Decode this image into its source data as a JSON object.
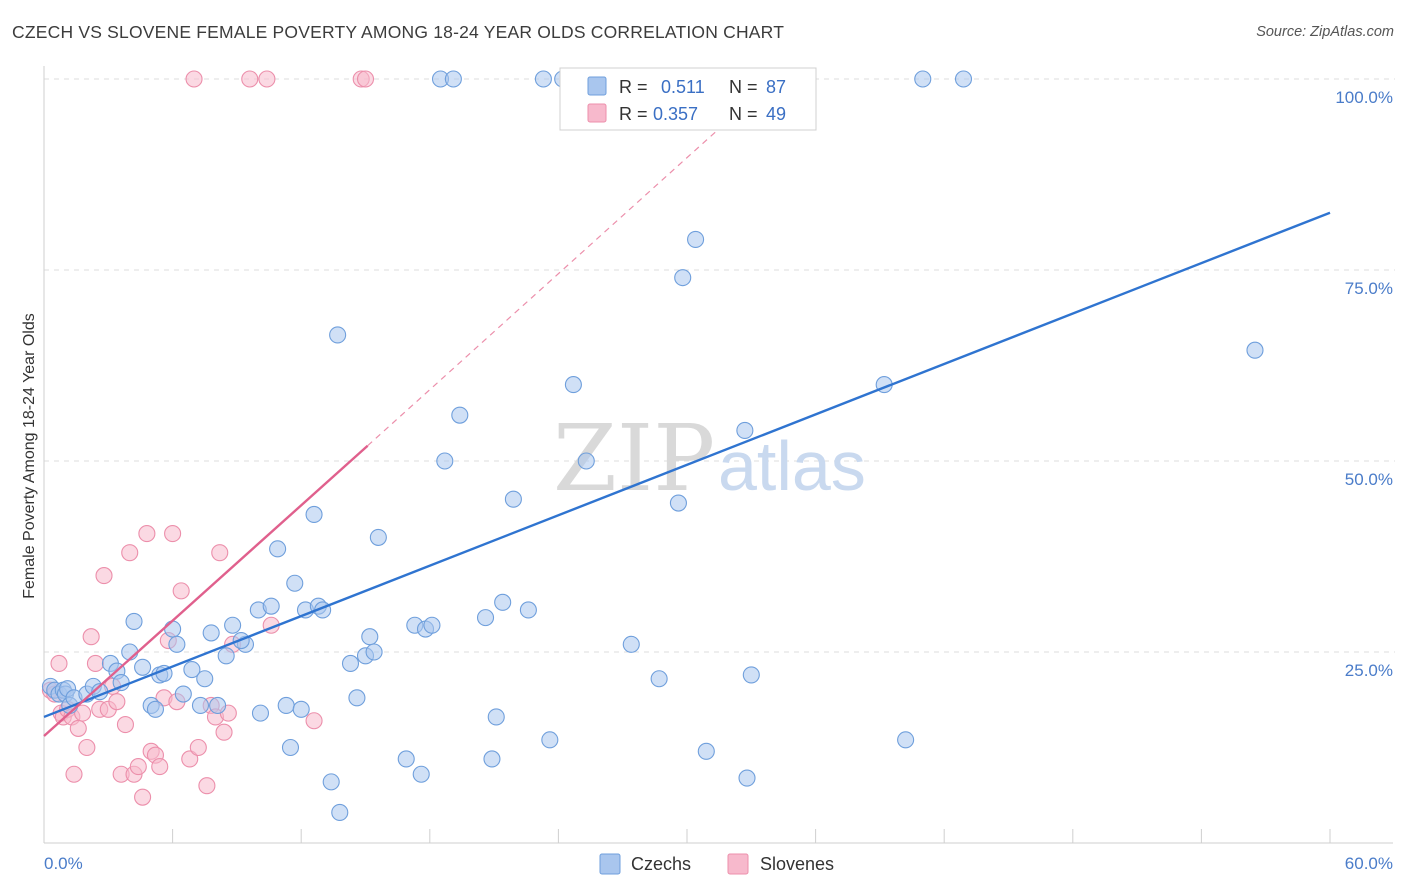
{
  "title": "CZECH VS SLOVENE FEMALE POVERTY AMONG 18-24 YEAR OLDS CORRELATION CHART",
  "source": "Source: ZipAtlas.com",
  "colors": {
    "czech_fill": "#a9c6ee",
    "czech_stroke": "#6f9fdc",
    "czech_line": "#2f74d0",
    "slovene_fill": "#f7b9cc",
    "slovene_stroke": "#ec8fab",
    "slovene_line": "#e0608d",
    "grid": "#dedede",
    "tick_text": "#4a7cc9"
  },
  "legend": {
    "rows": [
      {
        "r_label": "R =",
        "r_value": "0.511",
        "n_label": "N =",
        "n_value": "87"
      },
      {
        "r_label": "R =",
        "r_value": "0.357",
        "n_label": "N =",
        "n_value": "49"
      }
    ]
  },
  "bottom_legend": {
    "czech": "Czechs",
    "slovene": "Slovenes"
  },
  "watermark": {
    "zip": "ZIP",
    "atlas": "atlas"
  },
  "chart_data": {
    "type": "scatter",
    "title": "CZECH VS SLOVENE FEMALE POVERTY AMONG 18-24 YEAR OLDS CORRELATION CHART",
    "xlabel": "",
    "ylabel": "Female Poverty Among 18-24 Year Olds",
    "xlim": [
      0,
      60
    ],
    "ylim": [
      0,
      100
    ],
    "x_tick_labels": [
      "0.0%",
      "60.0%"
    ],
    "y_tick_values": [
      25,
      50,
      75,
      100
    ],
    "y_tick_labels": [
      "25.0%",
      "50.0%",
      "75.0%",
      "100.0%"
    ],
    "grid": true,
    "legend_position": "top-center",
    "series": [
      {
        "name": "Czechs",
        "r": 0.511,
        "n": 87,
        "trend": {
          "x0": 0,
          "y0": 16.5,
          "x1": 60,
          "y1": 82.5
        },
        "points": [
          [
            0.3,
            20.5
          ],
          [
            0.5,
            20
          ],
          [
            0.7,
            19.5
          ],
          [
            0.9,
            20
          ],
          [
            1.0,
            19.5
          ],
          [
            1.1,
            20.2
          ],
          [
            1.2,
            18
          ],
          [
            1.4,
            19
          ],
          [
            2.0,
            19.5
          ],
          [
            2.3,
            20.5
          ],
          [
            2.6,
            19.8
          ],
          [
            3.1,
            23.5
          ],
          [
            3.4,
            22.5
          ],
          [
            3.6,
            21
          ],
          [
            4.0,
            25
          ],
          [
            4.2,
            29
          ],
          [
            4.6,
            23
          ],
          [
            5.0,
            18
          ],
          [
            5.2,
            17.5
          ],
          [
            5.4,
            22
          ],
          [
            5.6,
            22.2
          ],
          [
            6.0,
            28
          ],
          [
            6.2,
            26
          ],
          [
            6.5,
            19.5
          ],
          [
            6.9,
            22.7
          ],
          [
            7.3,
            18
          ],
          [
            7.5,
            21.5
          ],
          [
            7.8,
            27.5
          ],
          [
            8.1,
            18
          ],
          [
            8.5,
            24.5
          ],
          [
            8.8,
            28.5
          ],
          [
            9.4,
            26
          ],
          [
            9.2,
            26.5
          ],
          [
            10.0,
            30.5
          ],
          [
            10.1,
            17
          ],
          [
            10.6,
            31
          ],
          [
            10.9,
            38.5
          ],
          [
            11.3,
            18
          ],
          [
            11.5,
            12.5
          ],
          [
            11.7,
            34
          ],
          [
            12.0,
            17.5
          ],
          [
            12.2,
            30.5
          ],
          [
            12.6,
            43
          ],
          [
            12.8,
            31
          ],
          [
            13.0,
            30.5
          ],
          [
            13.4,
            8
          ],
          [
            13.7,
            66.5
          ],
          [
            13.8,
            4
          ],
          [
            14.3,
            23.5
          ],
          [
            14.6,
            19
          ],
          [
            15.0,
            24.5
          ],
          [
            15.2,
            27
          ],
          [
            15.4,
            25
          ],
          [
            15.6,
            40
          ],
          [
            16.9,
            11
          ],
          [
            17.3,
            28.5
          ],
          [
            17.6,
            9
          ],
          [
            17.8,
            28
          ],
          [
            18.1,
            28.5
          ],
          [
            18.5,
            100
          ],
          [
            18.7,
            50
          ],
          [
            19.1,
            100
          ],
          [
            19.4,
            56
          ],
          [
            20.6,
            29.5
          ],
          [
            20.9,
            11
          ],
          [
            21.1,
            16.5
          ],
          [
            21.4,
            31.5
          ],
          [
            21.9,
            45
          ],
          [
            22.6,
            30.5
          ],
          [
            23.3,
            100
          ],
          [
            23.6,
            13.5
          ],
          [
            24.2,
            100
          ],
          [
            24.7,
            60
          ],
          [
            25.3,
            50
          ],
          [
            27.4,
            26
          ],
          [
            28.7,
            21.5
          ],
          [
            29.6,
            44.5
          ],
          [
            29.8,
            74
          ],
          [
            30.4,
            79
          ],
          [
            30.9,
            12
          ],
          [
            32.7,
            54
          ],
          [
            32.8,
            8.5
          ],
          [
            33.0,
            22
          ],
          [
            39.2,
            60
          ],
          [
            40.2,
            13.5
          ],
          [
            41.0,
            100
          ],
          [
            42.9,
            100
          ],
          [
            56.5,
            64.5
          ]
        ]
      },
      {
        "name": "Slovenes",
        "r": 0.357,
        "n": 49,
        "trend": {
          "x0": 0,
          "y0": 14,
          "x1": 15.1,
          "y1": 52
        },
        "trend_dashed": {
          "x0": 15.1,
          "y0": 52,
          "x1": 31.5,
          "y1": 93.5
        },
        "points": [
          [
            0.3,
            20
          ],
          [
            0.5,
            19.5
          ],
          [
            0.7,
            23.5
          ],
          [
            0.8,
            17
          ],
          [
            0.9,
            16.5
          ],
          [
            1.1,
            17.5
          ],
          [
            1.3,
            16.5
          ],
          [
            1.4,
            9
          ],
          [
            1.6,
            15
          ],
          [
            1.8,
            17
          ],
          [
            2.0,
            12.5
          ],
          [
            2.2,
            27
          ],
          [
            2.4,
            23.5
          ],
          [
            2.6,
            17.5
          ],
          [
            2.8,
            35
          ],
          [
            3.0,
            17.5
          ],
          [
            3.2,
            20.5
          ],
          [
            3.4,
            18.5
          ],
          [
            3.6,
            9
          ],
          [
            3.8,
            15.5
          ],
          [
            4.0,
            38
          ],
          [
            4.2,
            9
          ],
          [
            4.4,
            10
          ],
          [
            4.6,
            6
          ],
          [
            4.8,
            40.5
          ],
          [
            5.0,
            12
          ],
          [
            5.2,
            11.5
          ],
          [
            5.4,
            10
          ],
          [
            5.6,
            19
          ],
          [
            5.8,
            26.5
          ],
          [
            6.0,
            40.5
          ],
          [
            6.2,
            18.5
          ],
          [
            6.4,
            33
          ],
          [
            6.8,
            11
          ],
          [
            7.0,
            100
          ],
          [
            7.2,
            12.5
          ],
          [
            7.6,
            7.5
          ],
          [
            7.8,
            18
          ],
          [
            8.0,
            16.5
          ],
          [
            8.2,
            38
          ],
          [
            8.4,
            14.5
          ],
          [
            8.6,
            17
          ],
          [
            8.8,
            26
          ],
          [
            9.6,
            100
          ],
          [
            10.4,
            100
          ],
          [
            10.6,
            28.5
          ],
          [
            12.6,
            16
          ],
          [
            14.8,
            100
          ],
          [
            15.0,
            100
          ]
        ]
      }
    ]
  }
}
